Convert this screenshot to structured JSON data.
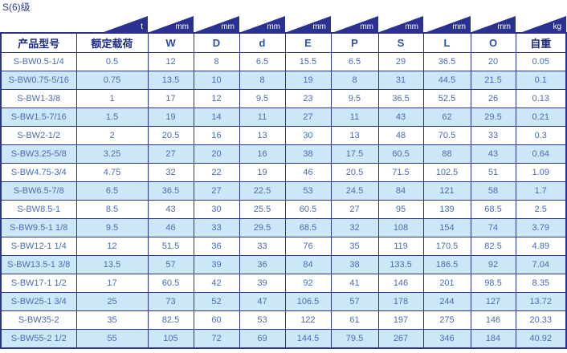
{
  "title": "S(6)级",
  "colors": {
    "navy": "#2b3191",
    "header_text": "#1f2d7e",
    "letter_header_text": "#2f4eb0",
    "data_text": "#4b6cb2",
    "alt_row_bg": "#cce7f8",
    "unit_text": "#ffffff"
  },
  "table": {
    "units": [
      "",
      "t",
      "mm",
      "mm",
      "mm",
      "mm",
      "mm",
      "mm",
      "mm",
      "mm",
      "kg"
    ],
    "headers": [
      "产品型号",
      "额定载荷",
      "W",
      "D",
      "d",
      "E",
      "P",
      "S",
      "L",
      "O",
      "自重"
    ],
    "rows": [
      [
        "S-BW0.5-1/4",
        "0.5",
        "12",
        "8",
        "6.5",
        "15.5",
        "6.5",
        "29",
        "36.5",
        "20",
        "0.05"
      ],
      [
        "S-BW0.75-5/16",
        "0.75",
        "13.5",
        "10",
        "8",
        "19",
        "8",
        "31",
        "44.5",
        "21.5",
        "0.1"
      ],
      [
        "S-BW1-3/8",
        "1",
        "17",
        "12",
        "9.5",
        "23",
        "9.5",
        "36.5",
        "52.5",
        "26",
        "0.13"
      ],
      [
        "S-BW1.5-7/16",
        "1.5",
        "19",
        "14",
        "11",
        "27",
        "11",
        "43",
        "62",
        "29.5",
        "0.21"
      ],
      [
        "S-BW2-1/2",
        "2",
        "20.5",
        "16",
        "13",
        "30",
        "13",
        "48",
        "70.5",
        "33",
        "0.3"
      ],
      [
        "S-BW3.25-5/8",
        "3.25",
        "27",
        "20",
        "16",
        "38",
        "17.5",
        "60.5",
        "88",
        "43",
        "0.64"
      ],
      [
        "S-BW4.75-3/4",
        "4.75",
        "32",
        "22",
        "19",
        "46",
        "20.5",
        "71.5",
        "102.5",
        "51",
        "1.09"
      ],
      [
        "S-BW6.5-7/8",
        "6.5",
        "36.5",
        "27",
        "22.5",
        "53",
        "24.5",
        "84",
        "121",
        "58",
        "1.7"
      ],
      [
        "S-BW8.5-1",
        "8.5",
        "43",
        "30",
        "25.5",
        "60.5",
        "27",
        "95",
        "139",
        "68.5",
        "2.5"
      ],
      [
        "S-BW9.5-1 1/8",
        "9.5",
        "46",
        "33",
        "29.5",
        "68.5",
        "32",
        "108",
        "154",
        "74",
        "3.79"
      ],
      [
        "S-BW12-1 1/4",
        "12",
        "51.5",
        "36",
        "33",
        "76",
        "35",
        "119",
        "170.5",
        "82.5",
        "4.89"
      ],
      [
        "S-BW13.5-1 3/8",
        "13.5",
        "57",
        "39",
        "36",
        "84",
        "38",
        "133.5",
        "186.5",
        "92",
        "7.04"
      ],
      [
        "S-BW17-1 1/2",
        "17",
        "60.5",
        "42",
        "39",
        "92",
        "41",
        "146",
        "201",
        "98.5",
        "8.35"
      ],
      [
        "S-BW25-1 3/4",
        "25",
        "73",
        "52",
        "47",
        "106.5",
        "57",
        "178",
        "244",
        "127",
        "13.72"
      ],
      [
        "S-BW35-2",
        "35",
        "82.5",
        "60",
        "53",
        "122",
        "61",
        "197",
        "275",
        "146",
        "20.33"
      ],
      [
        "S-BW55-2 1/2",
        "55",
        "105",
        "72",
        "69",
        "144.5",
        "79.5",
        "267",
        "346",
        "184",
        "40.92"
      ]
    ]
  }
}
